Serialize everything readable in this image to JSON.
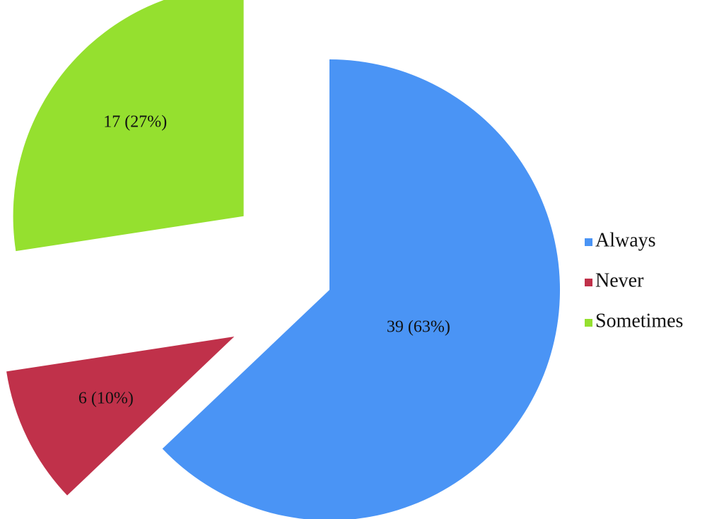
{
  "chart_data": {
    "type": "pie",
    "categories": [
      "Always",
      "Never",
      "Sometimes"
    ],
    "values": [
      39,
      6,
      17
    ],
    "value_labels": [
      "39 (63%)",
      "6 (10%)",
      "17 (27%)"
    ],
    "colors": [
      "#4a94f5",
      "#c0314a",
      "#95e02f"
    ],
    "legend": "right"
  }
}
